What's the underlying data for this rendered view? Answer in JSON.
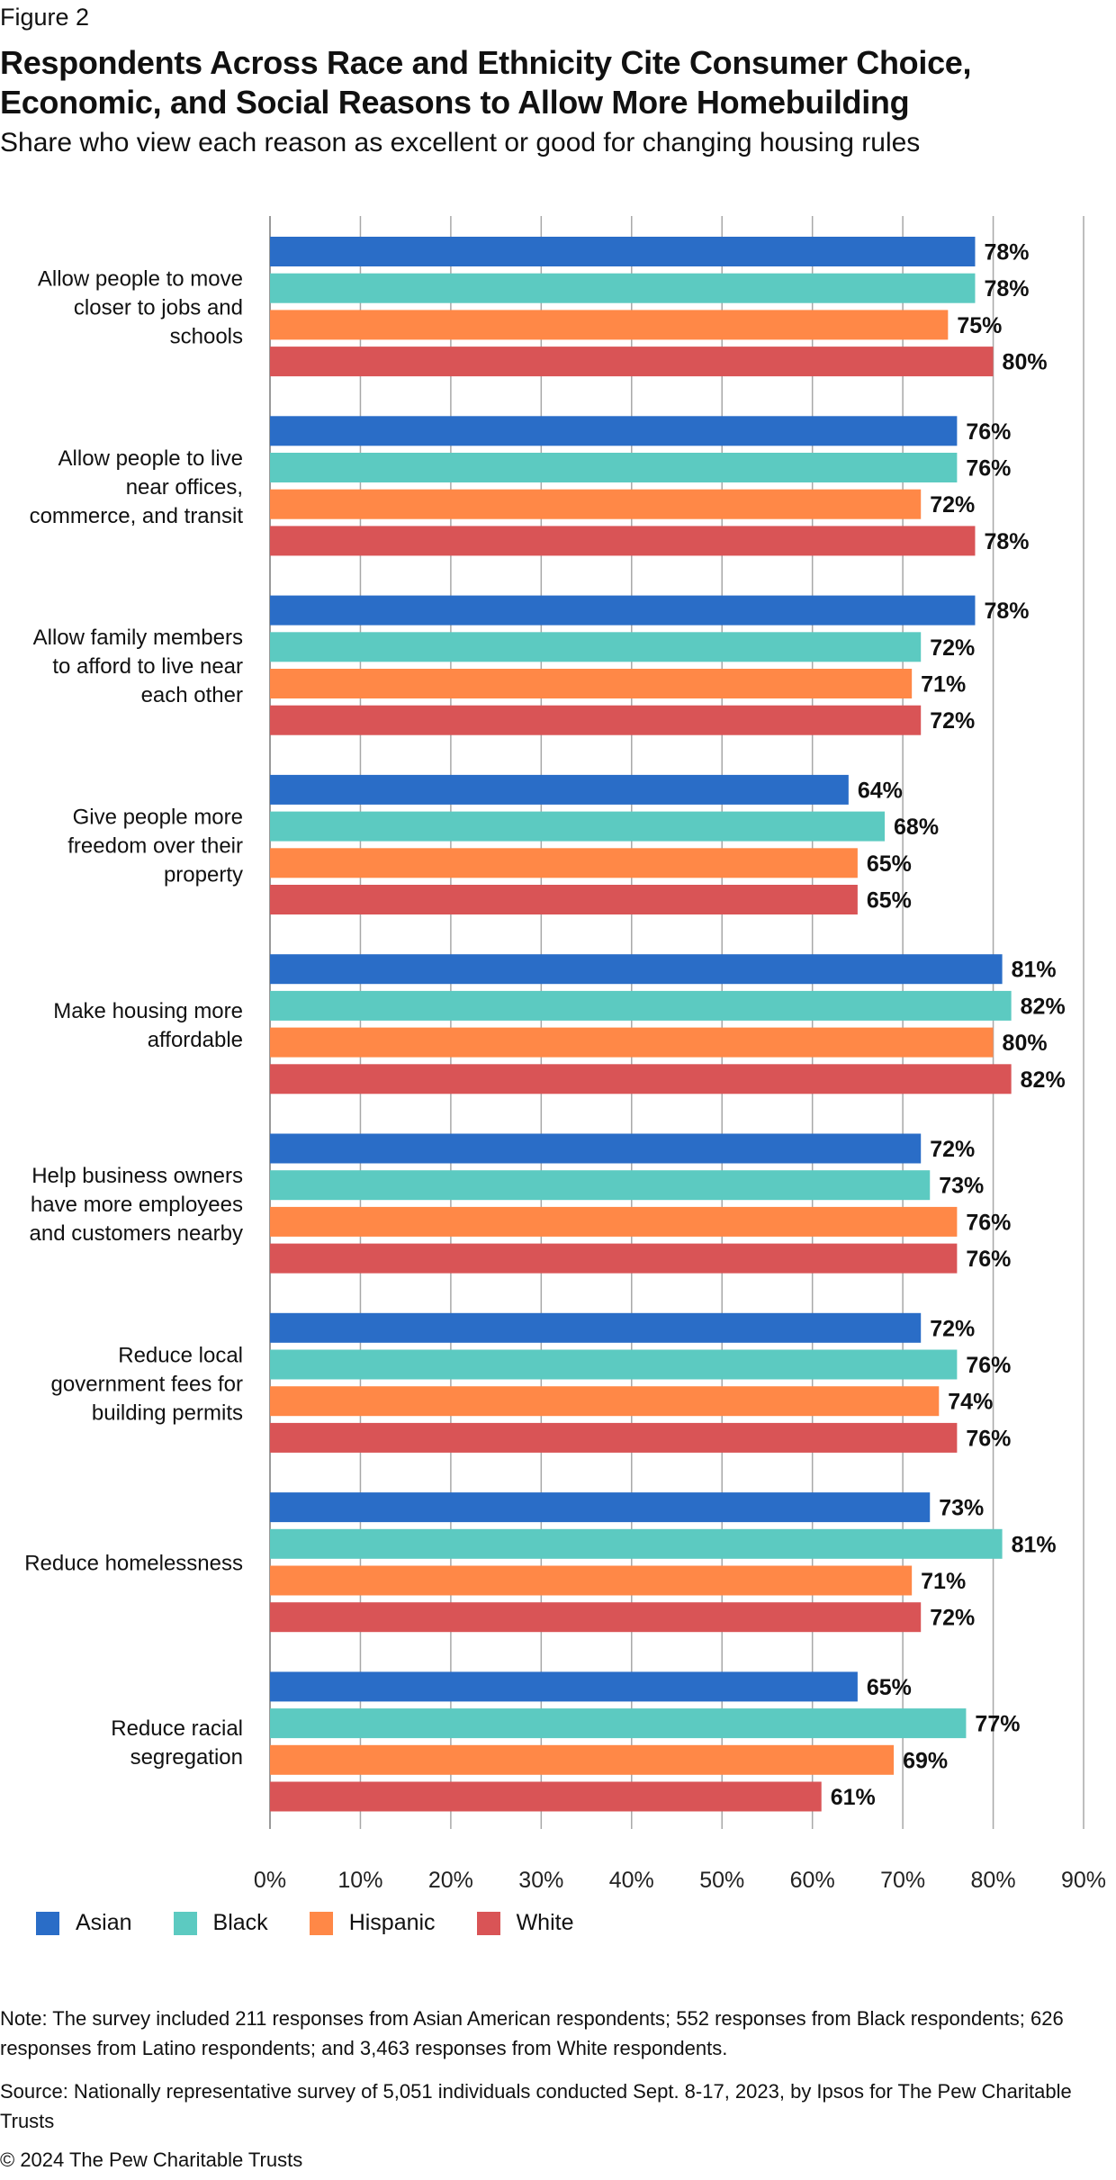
{
  "figure_label": "Figure 2",
  "title": "Respondents Across Race and Ethnicity Cite Consumer Choice, Economic, and Social Reasons to Allow More Homebuilding",
  "subtitle": "Share who view each reason as excellent or good for changing housing rules",
  "note": "Note: The survey included 211 responses from Asian American respondents; 552 responses from Black respondents; 626 responses from Latino respondents; and 3,463 responses from White respondents.",
  "source": "Source: Nationally representative survey of 5,051 individuals conducted Sept. 8-17, 2023, by Ipsos for The Pew Charitable Trusts",
  "copyright": "© 2024 The Pew Charitable Trusts",
  "chart_data": {
    "type": "bar",
    "orientation": "horizontal",
    "categories": [
      [
        "Allow people to move",
        "closer to jobs and",
        "schools"
      ],
      [
        "Allow people to live",
        "near offices,",
        "commerce, and transit"
      ],
      [
        "Allow family members",
        "to afford to live near",
        "each other"
      ],
      [
        "Give people more",
        "freedom over their",
        "property"
      ],
      [
        "Make housing more",
        "affordable"
      ],
      [
        "Help business owners",
        "have more employees",
        "and customers nearby"
      ],
      [
        "Reduce local",
        "government fees for",
        "building permits"
      ],
      [
        "Reduce homelessness"
      ],
      [
        "Reduce racial",
        "segregation"
      ]
    ],
    "series": [
      {
        "name": "Asian",
        "color": "#2a6dc7",
        "values": [
          78,
          76,
          78,
          64,
          81,
          72,
          72,
          73,
          65
        ]
      },
      {
        "name": "Black",
        "color": "#5ccac1",
        "values": [
          78,
          76,
          72,
          68,
          82,
          73,
          76,
          81,
          77
        ]
      },
      {
        "name": "Hispanic",
        "color": "#ff8847",
        "values": [
          75,
          72,
          71,
          65,
          80,
          76,
          74,
          71,
          69
        ]
      },
      {
        "name": "White",
        "color": "#d95456",
        "values": [
          80,
          78,
          72,
          65,
          82,
          76,
          76,
          72,
          61
        ]
      }
    ],
    "value_suffix": "%",
    "xlim": [
      0,
      90
    ],
    "xticks": [
      0,
      10,
      20,
      30,
      40,
      50,
      60,
      70,
      80,
      90
    ],
    "xtick_labels": [
      "0%",
      "10%",
      "20%",
      "30%",
      "40%",
      "50%",
      "60%",
      "70%",
      "80%",
      "90%"
    ],
    "grid": true,
    "legend_position": "bottom-left"
  }
}
